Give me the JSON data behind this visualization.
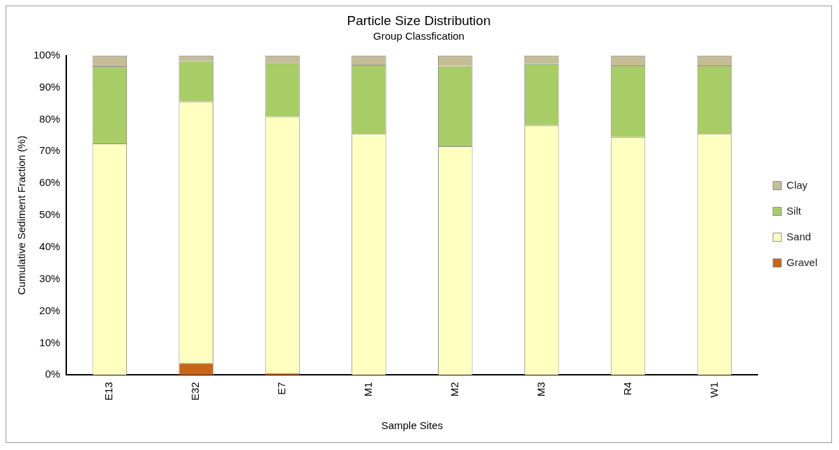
{
  "chart_data": {
    "type": "bar",
    "title": "Particle Size Distribution",
    "subtitle": "Group Classfication",
    "xlabel": "Sample Sites",
    "ylabel": "Cumulative Sediment Fraction (%)",
    "categories": [
      "E13",
      "E32",
      "E7",
      "M1",
      "M2",
      "M3",
      "R4",
      "W1"
    ],
    "series": [
      {
        "name": "Gravel",
        "color": "#c8651b",
        "values": [
          0,
          3.7,
          0.5,
          0,
          0,
          0,
          0,
          0
        ]
      },
      {
        "name": "Sand",
        "color": "#ffffc0",
        "values": [
          72.5,
          81.9,
          80.4,
          75.5,
          71.6,
          78.2,
          74.5,
          75.5
        ]
      },
      {
        "name": "Silt",
        "color": "#a9cd66",
        "values": [
          24.2,
          12.7,
          16.7,
          21.6,
          25.2,
          19.2,
          22.4,
          21.4
        ]
      },
      {
        "name": "Clay",
        "color": "#c4bd97",
        "values": [
          3.3,
          1.7,
          2.4,
          2.9,
          3.2,
          2.6,
          3.1,
          3.1
        ]
      }
    ],
    "stacked": true,
    "ylim": [
      0,
      100
    ],
    "yticks": [
      {
        "value": 0,
        "label": "0%"
      },
      {
        "value": 10,
        "label": "10%"
      },
      {
        "value": 20,
        "label": "20%"
      },
      {
        "value": 30,
        "label": "30%"
      },
      {
        "value": 40,
        "label": "40%"
      },
      {
        "value": 50,
        "label": "50%"
      },
      {
        "value": 60,
        "label": "60%"
      },
      {
        "value": 70,
        "label": "70%"
      },
      {
        "value": 80,
        "label": "80%"
      },
      {
        "value": 90,
        "label": "90%"
      },
      {
        "value": 100,
        "label": "100%"
      }
    ],
    "grid": false,
    "legend": "right"
  }
}
